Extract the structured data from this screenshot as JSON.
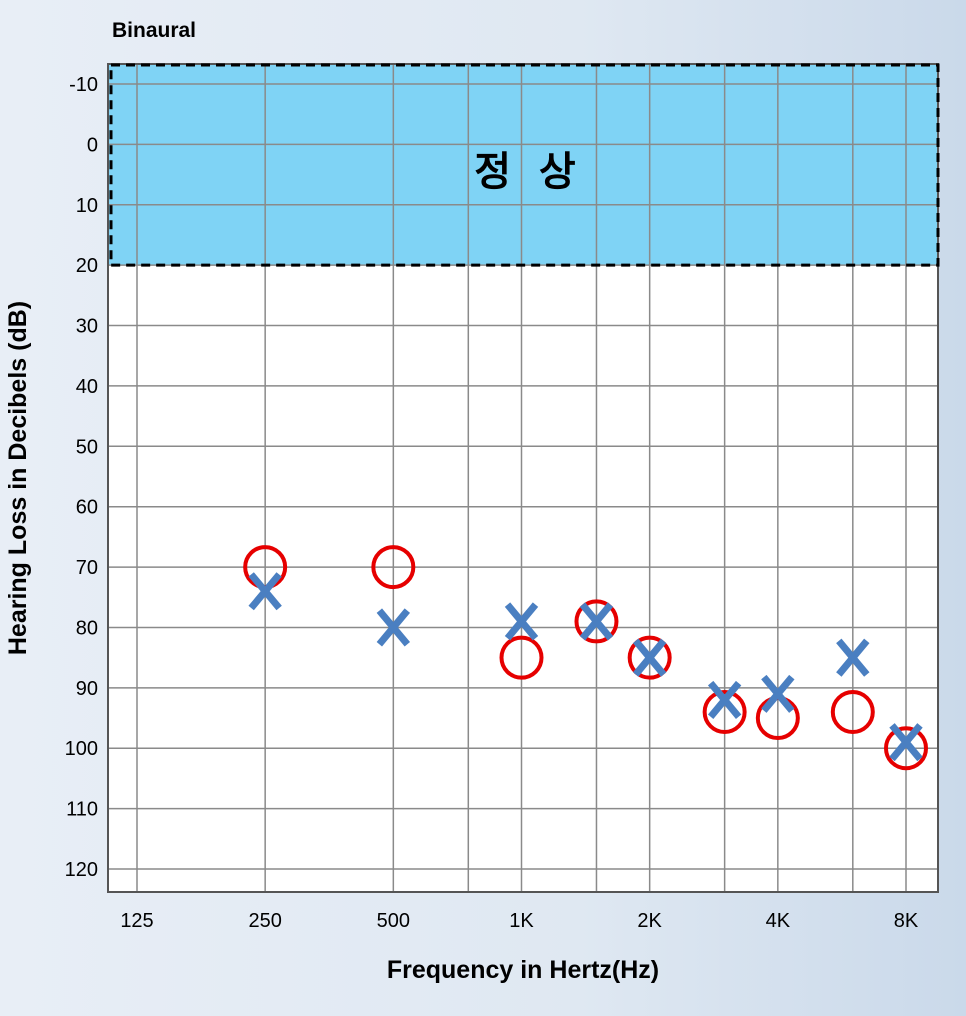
{
  "chart_data": {
    "type": "scatter",
    "title": "Binaural",
    "xlabel": "Frequency in Hertz(Hz)",
    "ylabel": "Hearing Loss in Decibels (dB)",
    "x_tick_labels": [
      "125",
      "250",
      "500",
      "1K",
      "2K",
      "4K",
      "8K"
    ],
    "x_ticks_hz": [
      125,
      250,
      500,
      1000,
      2000,
      4000,
      8000
    ],
    "x_gridlines_hz": [
      125,
      250,
      500,
      750,
      1000,
      1500,
      2000,
      3000,
      4000,
      6000,
      8000
    ],
    "x_scale": "log",
    "xlim": [
      100,
      10000
    ],
    "ylim": [
      -15,
      125
    ],
    "y_inverted": true,
    "y_ticks": [
      -10,
      0,
      10,
      20,
      30,
      40,
      50,
      60,
      70,
      80,
      90,
      100,
      110,
      120
    ],
    "grid": true,
    "normal_zone": {
      "label": "정  상",
      "y_range": [
        -15,
        20
      ],
      "color": "#7fd3f5"
    },
    "series": [
      {
        "marker": "circle",
        "color": "#e60000",
        "points": [
          {
            "x": 250,
            "y": 70
          },
          {
            "x": 500,
            "y": 70
          },
          {
            "x": 1000,
            "y": 85
          },
          {
            "x": 1500,
            "y": 79
          },
          {
            "x": 2000,
            "y": 85
          },
          {
            "x": 3000,
            "y": 94
          },
          {
            "x": 4000,
            "y": 95
          },
          {
            "x": 6000,
            "y": 94
          },
          {
            "x": 8000,
            "y": 100
          }
        ]
      },
      {
        "marker": "cross",
        "color": "#4a7fc1",
        "points": [
          {
            "x": 250,
            "y": 74
          },
          {
            "x": 500,
            "y": 80
          },
          {
            "x": 1000,
            "y": 79
          },
          {
            "x": 1500,
            "y": 79
          },
          {
            "x": 2000,
            "y": 85
          },
          {
            "x": 3000,
            "y": 92
          },
          {
            "x": 4000,
            "y": 91
          },
          {
            "x": 6000,
            "y": 85
          },
          {
            "x": 8000,
            "y": 99
          }
        ]
      }
    ]
  }
}
